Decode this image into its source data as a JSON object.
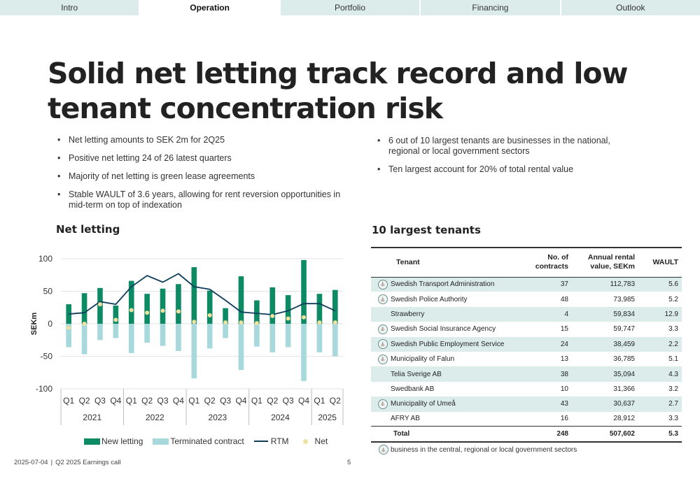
{
  "nav": [
    {
      "label": "Intro",
      "active": false
    },
    {
      "label": "Operation",
      "active": true
    },
    {
      "label": "Portfolio",
      "active": false
    },
    {
      "label": "Financing",
      "active": false
    },
    {
      "label": "Outlook",
      "active": false
    }
  ],
  "title": "Solid net letting track record and low tenant concentration risk",
  "bullets_left": [
    "Net letting amounts to SEK 2m for 2Q25",
    "Positive net letting 24 of 26 latest quarters",
    "Majority of net letting is green lease agreements",
    "Stable WAULT of 3.6 years, allowing for rent reversion opportunities in mid-term on top of indexation"
  ],
  "bullets_right": [
    "6 out of 10 largest tenants are businesses in the national, regional or local government sectors",
    "Ten largest account for 20% of total rental value"
  ],
  "net_letting_title": "Net letting",
  "tenants_title": "10 largest tenants",
  "chart_data": {
    "type": "bar",
    "categories": [
      "Q1",
      "Q2",
      "Q3",
      "Q4",
      "Q1",
      "Q2",
      "Q3",
      "Q4",
      "Q1",
      "Q2",
      "Q3",
      "Q4",
      "Q1",
      "Q2",
      "Q3",
      "Q4",
      "Q1",
      "Q2"
    ],
    "groups": [
      {
        "label": "2021",
        "count": 4
      },
      {
        "label": "2022",
        "count": 4
      },
      {
        "label": "2023",
        "count": 4
      },
      {
        "label": "2024",
        "count": 4
      },
      {
        "label": "2025",
        "count": 2
      }
    ],
    "series": [
      {
        "name": "New letting",
        "type": "bar",
        "color": "#0b8a64",
        "values": [
          30,
          47,
          55,
          28,
          66,
          46,
          54,
          61,
          87,
          51,
          24,
          73,
          36,
          56,
          44,
          98,
          46,
          52
        ]
      },
      {
        "name": "Terminated contract",
        "type": "bar",
        "color": "#a6d8dc",
        "values": [
          -36,
          -47,
          -25,
          -22,
          -45,
          -29,
          -34,
          -42,
          -84,
          -38,
          -22,
          -71,
          -35,
          -44,
          -36,
          -88,
          -44,
          -50
        ]
      },
      {
        "name": "RTM",
        "type": "line",
        "color": "#0e3d5c",
        "values": [
          15,
          17,
          34,
          30,
          57,
          74,
          64,
          77,
          57,
          53,
          36,
          18,
          16,
          14,
          20,
          31,
          31,
          20
        ]
      },
      {
        "name": "Net",
        "type": "scatter",
        "color": "#efe2a0",
        "values": [
          -6,
          0,
          30,
          6,
          21,
          17,
          20,
          19,
          3,
          13,
          2,
          2,
          1,
          12,
          8,
          10,
          2,
          2
        ]
      }
    ],
    "xlabel": "",
    "ylabel": "SEKm",
    "ylim": [
      -100,
      100
    ],
    "yticks": [
      100,
      50,
      0,
      -50,
      -100
    ],
    "grid": true,
    "legend": "bottom"
  },
  "table": {
    "headers": {
      "tenant": "Tenant",
      "contracts_1": "No. of",
      "contracts_2": "contracts",
      "value_1": "Annual rental",
      "value_2": "value, SEKm",
      "wault": "WAULT"
    },
    "rows": [
      {
        "name": "Swedish Transport Administration",
        "contracts": "37",
        "value": "112,783",
        "wault": "5.6",
        "gov": true,
        "shade": true
      },
      {
        "name": "Swedish Police Authority",
        "contracts": "48",
        "value": "73,985",
        "wault": "5.2",
        "gov": true,
        "shade": false
      },
      {
        "name": "Strawberry",
        "contracts": "4",
        "value": "59,834",
        "wault": "12.9",
        "gov": false,
        "shade": true
      },
      {
        "name": "Swedish Social Insurance Agency",
        "contracts": "15",
        "value": "59,747",
        "wault": "3.3",
        "gov": true,
        "shade": false
      },
      {
        "name": "Swedish Public Employment Service",
        "contracts": "24",
        "value": "38,459",
        "wault": "2.2",
        "gov": true,
        "shade": true
      },
      {
        "name": "Municipality of Falun",
        "contracts": "13",
        "value": "36,785",
        "wault": "5.1",
        "gov": true,
        "shade": false
      },
      {
        "name": "Telia Sverige AB",
        "contracts": "38",
        "value": "35,094",
        "wault": "4.3",
        "gov": false,
        "shade": true
      },
      {
        "name": "Swedbank AB",
        "contracts": "10",
        "value": "31,366",
        "wault": "3.2",
        "gov": false,
        "shade": false
      },
      {
        "name": "Municipality of Umeå",
        "contracts": "43",
        "value": "30,637",
        "wault": "2.7",
        "gov": true,
        "shade": true
      },
      {
        "name": "AFRY AB",
        "contracts": "16",
        "value": "28,912",
        "wault": "3.3",
        "gov": false,
        "shade": false
      }
    ],
    "total": {
      "label": "Total",
      "contracts": "248",
      "value": "507,602",
      "wault": "5.3"
    }
  },
  "footnote": "business in the central, regional or local government sectors",
  "footer": {
    "date": "2025-07-04",
    "event": "Q2 2025 Earnings call",
    "page": "5"
  }
}
